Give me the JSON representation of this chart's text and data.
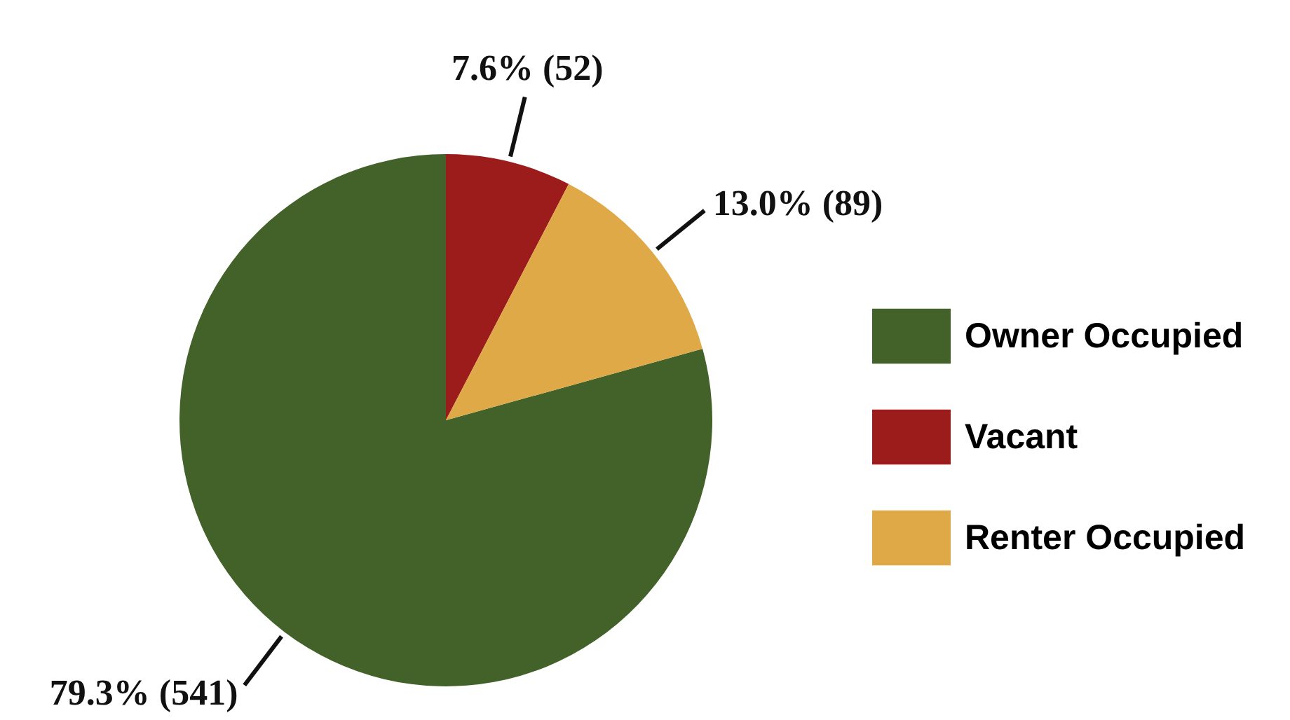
{
  "chart_data": {
    "type": "pie",
    "categories": [
      "Owner Occupied",
      "Vacant",
      "Renter Occupied"
    ],
    "values": [
      541,
      52,
      89
    ],
    "colors": [
      "#43622a",
      "#9c1c1c",
      "#e0a947"
    ],
    "value_labels": [
      "79.3% (541)",
      "7.6% (52)",
      "13.0% (89)"
    ],
    "legend": "right"
  }
}
